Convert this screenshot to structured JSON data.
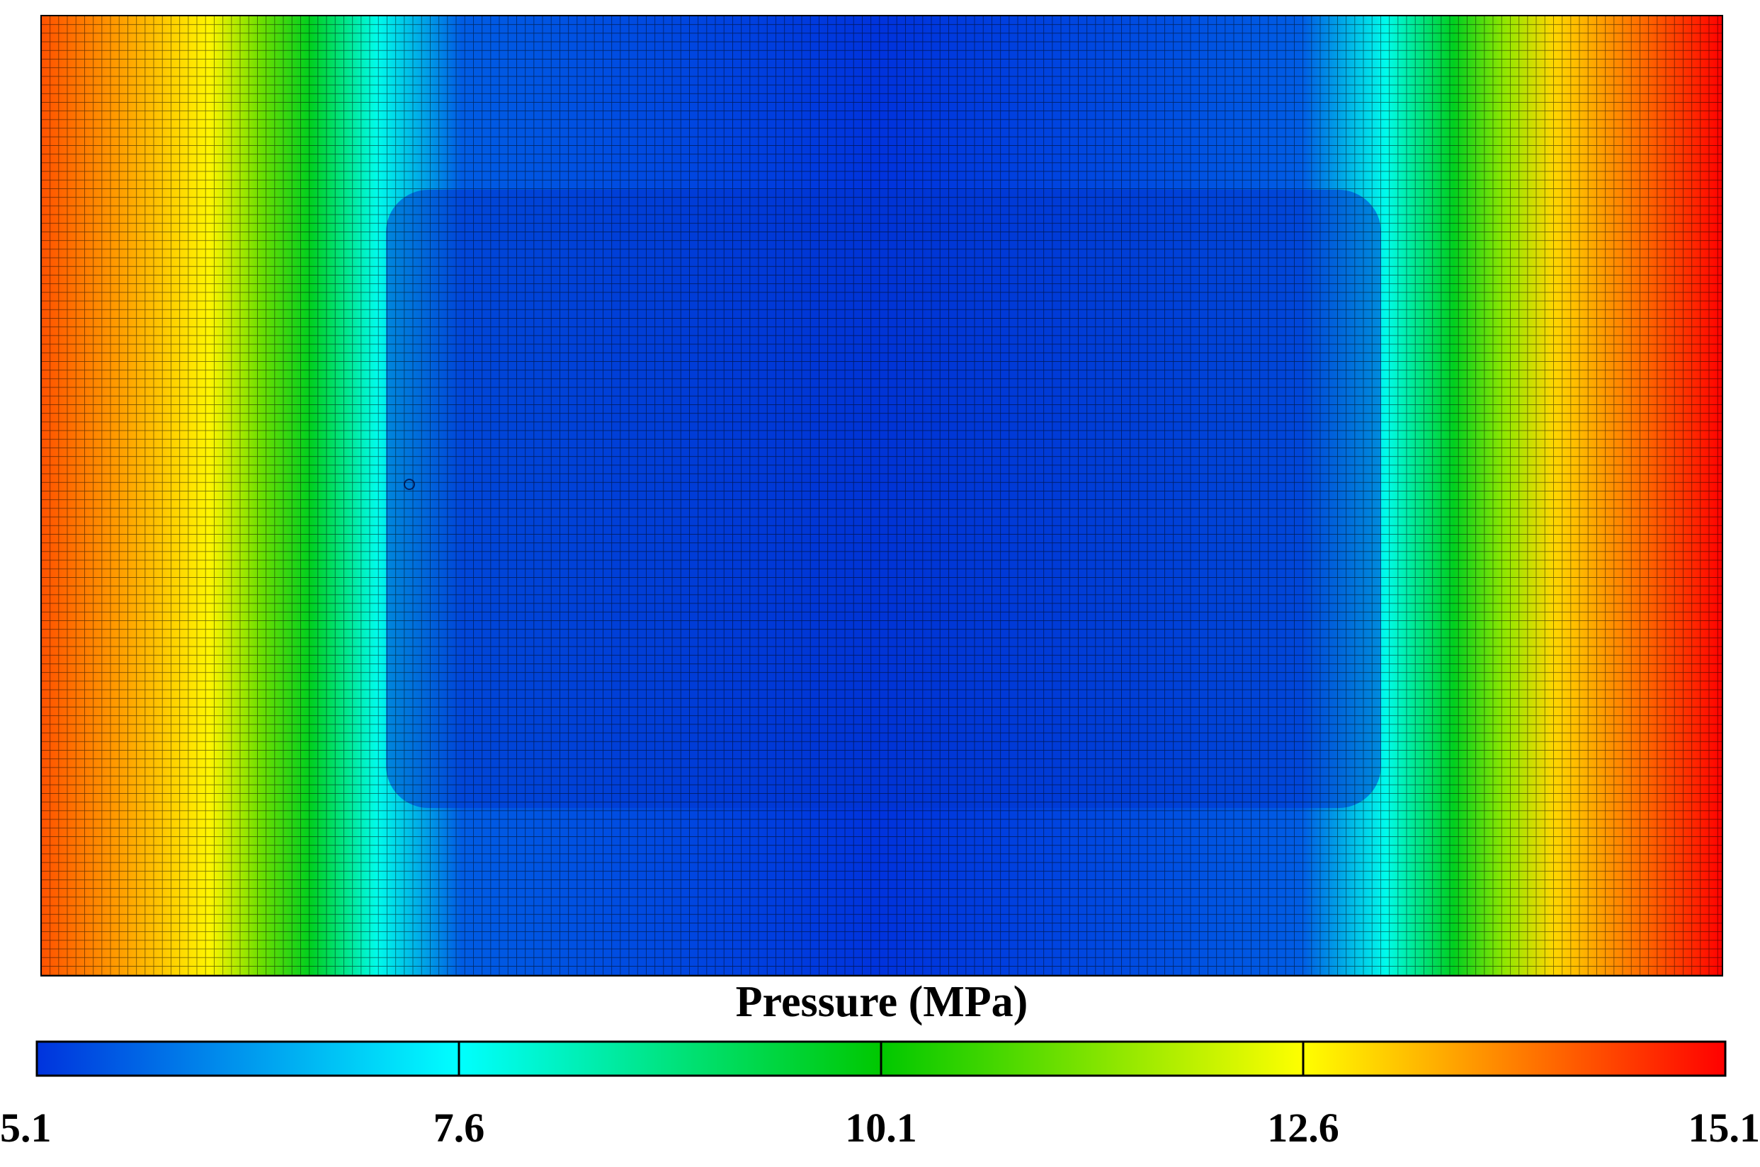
{
  "chart_data": {
    "type": "heatmap",
    "title": "",
    "colorbar": {
      "label": "Pressure (MPa)",
      "min": 5.1,
      "max": 15.1,
      "ticks": [
        "5.1",
        "7.6",
        "10.1",
        "12.6",
        "15.1"
      ],
      "tick_values": [
        5.1,
        7.6,
        10.1,
        12.6,
        15.1
      ],
      "orientation": "horizontal",
      "position": "bottom",
      "colors": [
        "#0033dd",
        "#00ffff",
        "#00c800",
        "#ffff00",
        "#ff0000"
      ]
    },
    "grid_lines": true,
    "field_description_profile": {
      "x_fraction": [
        0.0,
        0.05,
        0.1,
        0.13,
        0.16,
        0.2,
        0.25,
        0.5,
        0.75,
        0.8,
        0.84,
        0.87,
        0.9,
        0.95,
        1.0
      ],
      "pressure": [
        14.3,
        13.5,
        12.7,
        11.2,
        9.8,
        7.8,
        5.6,
        5.1,
        5.6,
        7.8,
        9.8,
        11.5,
        13.0,
        14.0,
        15.1
      ]
    }
  }
}
